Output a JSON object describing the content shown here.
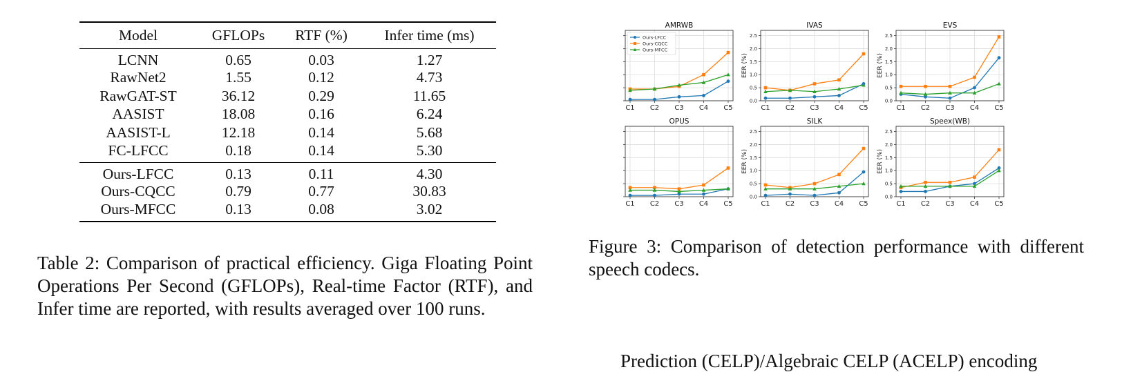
{
  "table": {
    "headers": [
      "Model",
      "GFLOPs",
      "RTF (%)",
      "Infer time (ms)"
    ],
    "group1": [
      [
        "LCNN",
        "0.65",
        "0.03",
        "1.27"
      ],
      [
        "RawNet2",
        "1.55",
        "0.12",
        "4.73"
      ],
      [
        "RawGAT-ST",
        "36.12",
        "0.29",
        "11.65"
      ],
      [
        "AASIST",
        "18.08",
        "0.16",
        "6.24"
      ],
      [
        "AASIST-L",
        "12.18",
        "0.14",
        "5.68"
      ],
      [
        "FC-LFCC",
        "0.18",
        "0.14",
        "5.30"
      ]
    ],
    "group2": [
      [
        "Ours-LFCC",
        "0.13",
        "0.11",
        "4.30"
      ],
      [
        "Ours-CQCC",
        "0.79",
        "0.77",
        "30.83"
      ],
      [
        "Ours-MFCC",
        "0.13",
        "0.08",
        "3.02"
      ]
    ]
  },
  "table_caption": "Table 2: Comparison of practical efficiency. Giga Floating Point Operations Per Second (GFLOPs), Real-time Factor (RTF), and Infer time are reported, with results averaged over 100 runs.",
  "figure_caption": "Figure 3: Comparison of detection performance with different speech codecs.",
  "bottom_text": "Prediction (CELP)/Algebraic CELP (ACELP) encoding",
  "chart_data": {
    "type": "line",
    "x": [
      "C1",
      "C2",
      "C3",
      "C4",
      "C5"
    ],
    "ylabel": "EER (%)",
    "ylim": [
      0,
      2.7
    ],
    "yticks": [
      0.0,
      0.5,
      1.0,
      1.5,
      2.0,
      2.5
    ],
    "grid": true,
    "legend_placement": "top-left (first panel only)",
    "series_styles": [
      {
        "name": "Ours-LFCC",
        "color": "#1f77b4",
        "marker": "circle"
      },
      {
        "name": "Ours-CQCC",
        "color": "#ff7f0e",
        "marker": "square"
      },
      {
        "name": "Ours-MFCC",
        "color": "#2ca02c",
        "marker": "triangle"
      }
    ],
    "panels": [
      {
        "title": "AMRWB",
        "series": [
          {
            "name": "Ours-LFCC",
            "values": [
              0.05,
              0.05,
              0.15,
              0.2,
              0.75
            ]
          },
          {
            "name": "Ours-CQCC",
            "values": [
              0.45,
              0.45,
              0.55,
              1.0,
              1.85
            ]
          },
          {
            "name": "Ours-MFCC",
            "values": [
              0.4,
              0.45,
              0.6,
              0.7,
              1.0
            ]
          }
        ]
      },
      {
        "title": "IVAS",
        "series": [
          {
            "name": "Ours-LFCC",
            "values": [
              0.1,
              0.1,
              0.15,
              0.2,
              0.65
            ]
          },
          {
            "name": "Ours-CQCC",
            "values": [
              0.5,
              0.4,
              0.65,
              0.8,
              1.8
            ]
          },
          {
            "name": "Ours-MFCC",
            "values": [
              0.35,
              0.4,
              0.35,
              0.45,
              0.6
            ]
          }
        ]
      },
      {
        "title": "EVS",
        "series": [
          {
            "name": "Ours-LFCC",
            "values": [
              0.25,
              0.15,
              0.1,
              0.5,
              1.65
            ]
          },
          {
            "name": "Ours-CQCC",
            "values": [
              0.55,
              0.55,
              0.55,
              0.9,
              2.45
            ]
          },
          {
            "name": "Ours-MFCC",
            "values": [
              0.3,
              0.25,
              0.3,
              0.3,
              0.65
            ]
          }
        ]
      },
      {
        "title": "OPUS",
        "series": [
          {
            "name": "Ours-LFCC",
            "values": [
              0.05,
              0.05,
              0.1,
              0.1,
              0.3
            ]
          },
          {
            "name": "Ours-CQCC",
            "values": [
              0.35,
              0.35,
              0.3,
              0.45,
              1.1
            ]
          },
          {
            "name": "Ours-MFCC",
            "values": [
              0.25,
              0.25,
              0.2,
              0.25,
              0.3
            ]
          }
        ]
      },
      {
        "title": "SILK",
        "series": [
          {
            "name": "Ours-LFCC",
            "values": [
              0.05,
              0.1,
              0.05,
              0.15,
              0.95
            ]
          },
          {
            "name": "Ours-CQCC",
            "values": [
              0.45,
              0.35,
              0.5,
              0.85,
              1.85
            ]
          },
          {
            "name": "Ours-MFCC",
            "values": [
              0.3,
              0.3,
              0.3,
              0.4,
              0.5
            ]
          }
        ]
      },
      {
        "title": "Speex(WB)",
        "series": [
          {
            "name": "Ours-LFCC",
            "values": [
              0.2,
              0.2,
              0.4,
              0.5,
              1.1
            ]
          },
          {
            "name": "Ours-CQCC",
            "values": [
              0.35,
              0.55,
              0.55,
              0.75,
              1.8
            ]
          },
          {
            "name": "Ours-MFCC",
            "values": [
              0.4,
              0.4,
              0.4,
              0.4,
              1.0
            ]
          }
        ]
      }
    ]
  }
}
